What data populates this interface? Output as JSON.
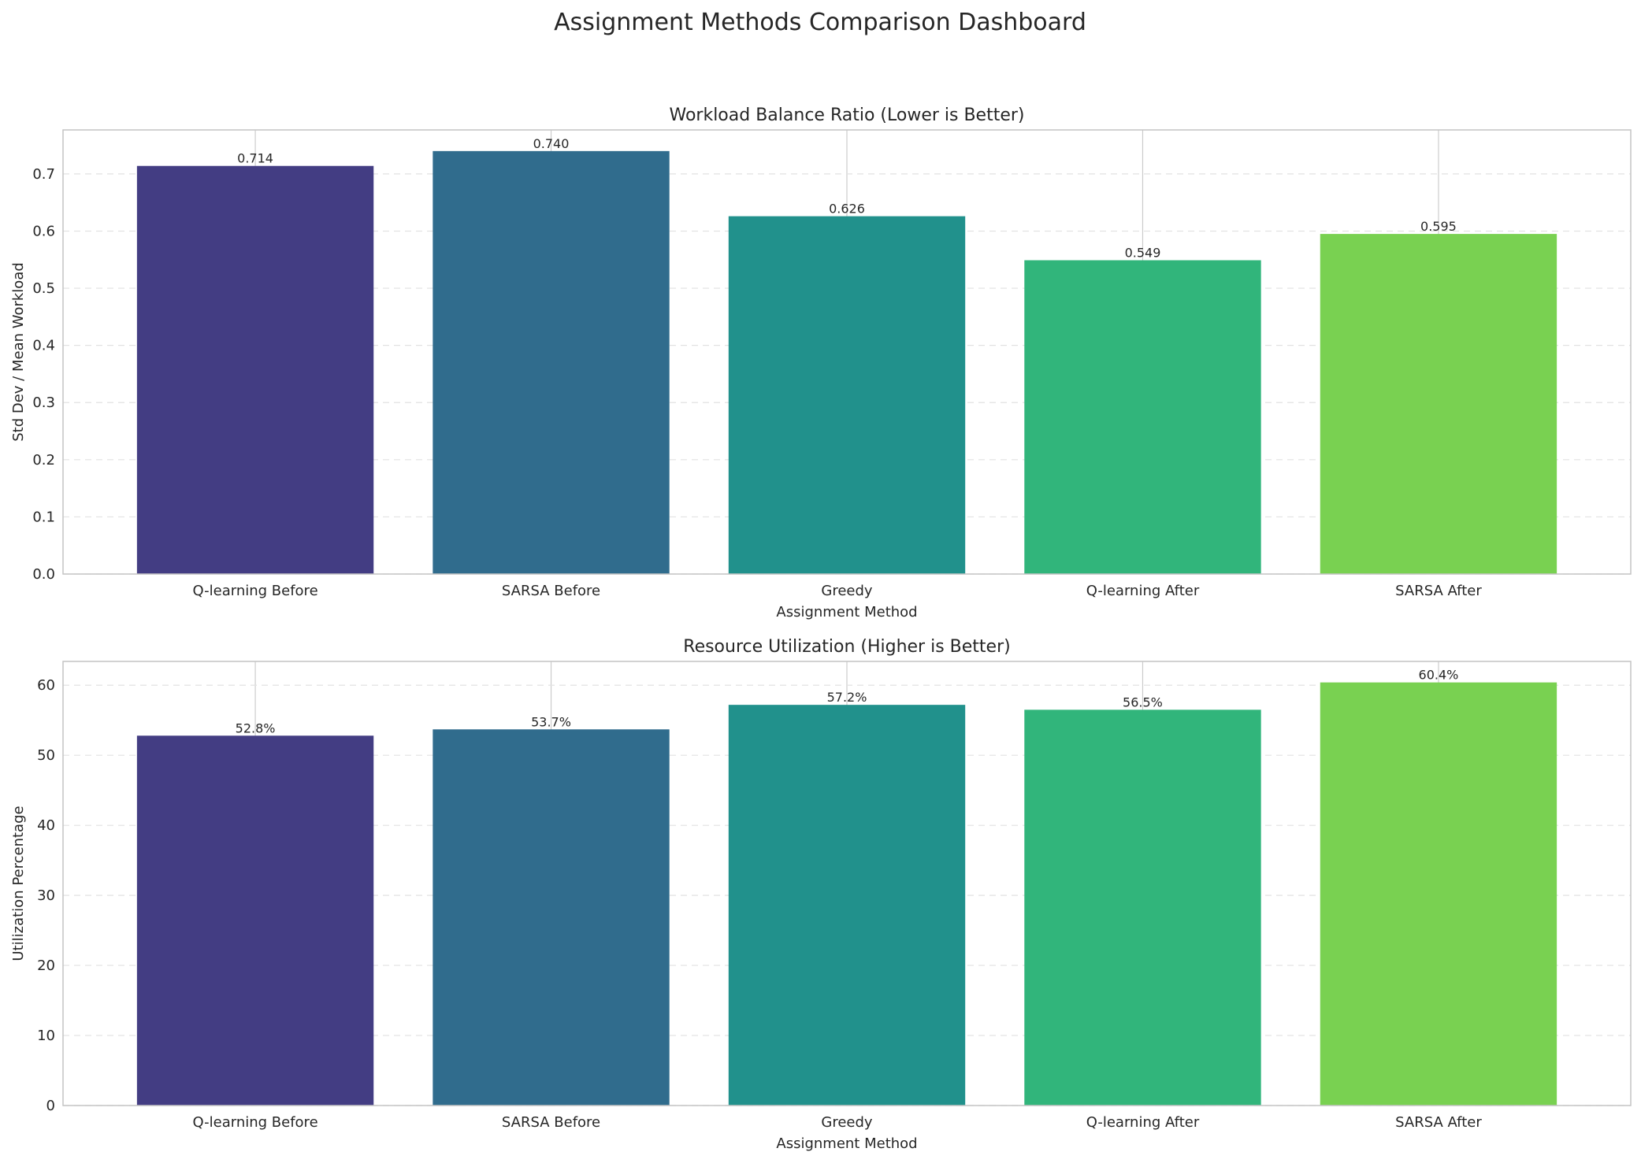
{
  "suptitle": "Assignment Methods Comparison Dashboard",
  "colors": [
    "#433d83",
    "#306c8d",
    "#21918c",
    "#31b57b",
    "#79d151"
  ],
  "chart_data": [
    {
      "type": "bar",
      "title": "Workload Balance Ratio (Lower is Better)",
      "xlabel": "Assignment Method",
      "ylabel": "Std Dev / Mean Workload",
      "categories": [
        "Q-learning Before",
        "SARSA Before",
        "Greedy",
        "Q-learning After",
        "SARSA After"
      ],
      "values": [
        0.714,
        0.74,
        0.626,
        0.549,
        0.595
      ],
      "value_labels": [
        "0.714",
        "0.740",
        "0.626",
        "0.549",
        "0.595"
      ],
      "ylim": [
        0,
        0.777
      ],
      "yticks": [
        0,
        0.1,
        0.2,
        0.3,
        0.4,
        0.5,
        0.6,
        0.7
      ],
      "ytick_labels": [
        "0.0",
        "0.1",
        "0.2",
        "0.3",
        "0.4",
        "0.5",
        "0.6",
        "0.7"
      ],
      "grid": "y dashed"
    },
    {
      "type": "bar",
      "title": "Resource Utilization (Higher is Better)",
      "xlabel": "Assignment Method",
      "ylabel": "Utilization Percentage",
      "categories": [
        "Q-learning Before",
        "SARSA Before",
        "Greedy",
        "Q-learning After",
        "SARSA After"
      ],
      "values": [
        52.8,
        53.7,
        57.2,
        56.5,
        60.4
      ],
      "value_labels": [
        "52.8%",
        "53.7%",
        "57.2%",
        "56.5%",
        "60.4%"
      ],
      "ylim": [
        0,
        63.4
      ],
      "yticks": [
        0,
        10,
        20,
        30,
        40,
        50,
        60
      ],
      "ytick_labels": [
        "0",
        "10",
        "20",
        "30",
        "40",
        "50",
        "60"
      ],
      "grid": "y dashed"
    }
  ]
}
